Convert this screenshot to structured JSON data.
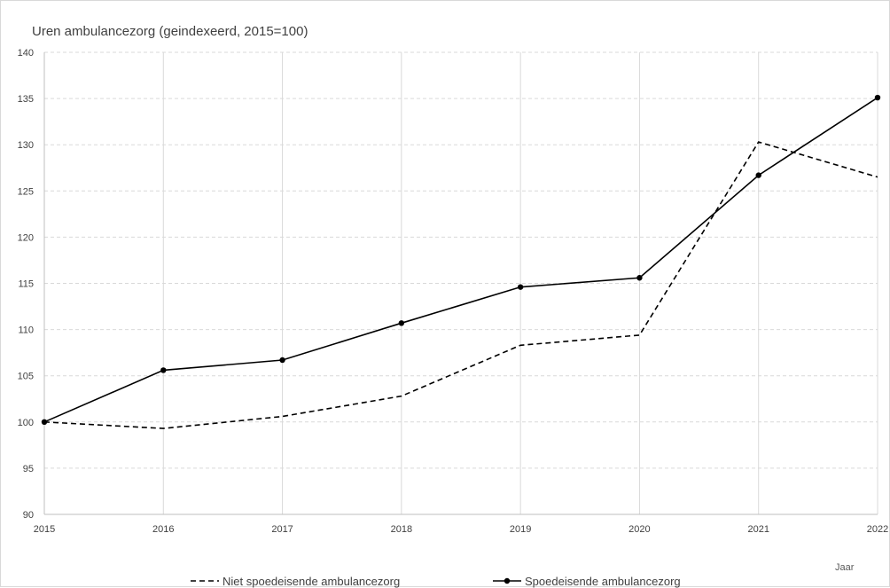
{
  "chart_data": {
    "type": "line",
    "title": "Uren ambulancezorg (geindexeerd, 2015=100)",
    "xlabel": "Jaar",
    "ylabel": "",
    "categories": [
      "2015",
      "2016",
      "2017",
      "2018",
      "2019",
      "2020",
      "2021",
      "2022"
    ],
    "ylim": [
      90,
      140
    ],
    "yticks": [
      90,
      95,
      100,
      105,
      110,
      115,
      120,
      125,
      130,
      135,
      140
    ],
    "grid": {
      "horizontal": "dashed",
      "vertical": "solid"
    },
    "legend_position": "bottom",
    "series": [
      {
        "name": "Niet spoedeisende ambulancezorg",
        "style": "dashed",
        "markers": false,
        "color": "#000000",
        "values": [
          100,
          99.3,
          100.6,
          102.8,
          108.3,
          109.4,
          130.3,
          126.5
        ]
      },
      {
        "name": "Spoedeisende ambulancezorg",
        "style": "solid",
        "markers": true,
        "color": "#000000",
        "values": [
          100,
          105.6,
          106.7,
          110.7,
          114.6,
          115.6,
          126.7,
          135.1
        ]
      }
    ]
  }
}
